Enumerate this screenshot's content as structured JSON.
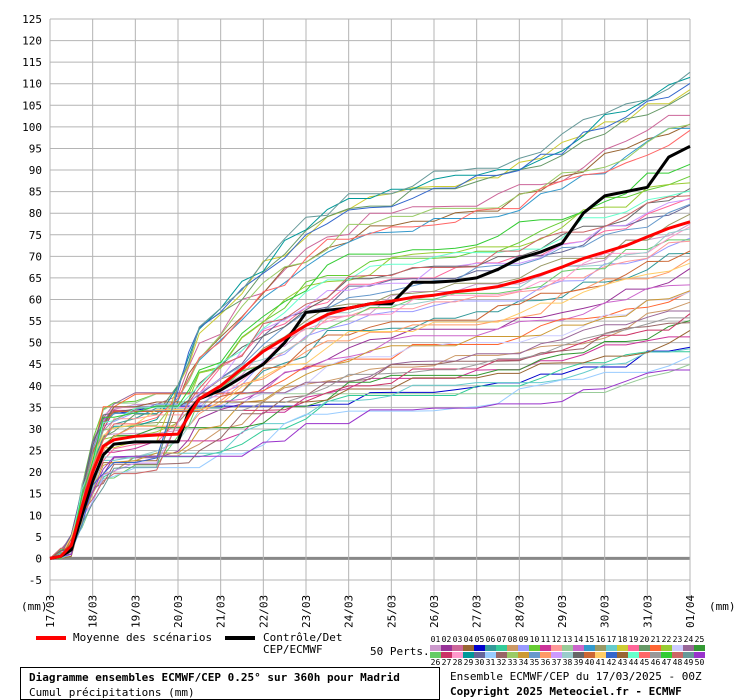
{
  "chart_data": {
    "type": "line",
    "unit_left": "(mm)",
    "unit_right": "(mm)",
    "y_ticks": [
      "-5",
      "0",
      "5",
      "10",
      "15",
      "20",
      "25",
      "30",
      "35",
      "40",
      "45",
      "50",
      "55",
      "60",
      "65",
      "70",
      "75",
      "80",
      "85",
      "90",
      "95",
      "100",
      "105",
      "110",
      "115",
      "120",
      "125"
    ],
    "ylim": [
      -5,
      125
    ],
    "x_ticks": [
      "17/03",
      "18/03",
      "19/03",
      "20/03",
      "21/03",
      "22/03",
      "23/03",
      "24/03",
      "25/03",
      "26/03",
      "27/03",
      "28/03",
      "29/03",
      "30/03",
      "31/03",
      "01/04"
    ],
    "grid": true,
    "series": [
      {
        "name": "Moyenne des scénarios",
        "color": "#ff0000",
        "x_days": [
          0,
          0.25,
          0.5,
          0.75,
          1,
          1.25,
          1.5,
          2,
          2.5,
          3,
          3.25,
          3.5,
          4,
          4.5,
          5,
          5.5,
          6,
          6.5,
          7,
          7.5,
          8,
          8.5,
          9,
          9.5,
          10,
          10.5,
          11,
          11.5,
          12,
          12.5,
          13,
          13.5,
          14,
          14.5,
          15
        ],
        "values": [
          0,
          0.5,
          3,
          12,
          20,
          26,
          27.5,
          28.3,
          28.6,
          28.8,
          33,
          37,
          40,
          44,
          48,
          51,
          54,
          56.5,
          58,
          59,
          59.6,
          60.5,
          61,
          61.8,
          62.3,
          63,
          64.3,
          65.8,
          67.5,
          69.5,
          71,
          72.5,
          74.5,
          76.5,
          78
        ]
      },
      {
        "name": "Contrôle/Det CEP/ECMWF",
        "color": "#000000",
        "x_days": [
          0,
          0.25,
          0.5,
          0.75,
          1,
          1.25,
          1.5,
          2,
          2.5,
          3,
          3.25,
          3.5,
          4,
          4.5,
          5,
          5.5,
          6,
          6.5,
          7,
          7.5,
          8,
          8.5,
          9,
          9.5,
          10,
          10.5,
          11,
          11.5,
          12,
          12.5,
          13,
          13.5,
          14,
          14.5,
          15
        ],
        "values": [
          0,
          0.5,
          2,
          10,
          18,
          24,
          26.5,
          27,
          27,
          27,
          34,
          37,
          39,
          42,
          45,
          50,
          57,
          57.5,
          58,
          59,
          59,
          64,
          64,
          64.3,
          65,
          67,
          69.5,
          71,
          73,
          80,
          84,
          85,
          86,
          93,
          95.5
        ]
      },
      {
        "name": "50 Perts.",
        "color": "#888888"
      }
    ]
  },
  "legend": {
    "mean_label": "Moyenne des scénarios",
    "control_label": "Contrôle/Det\nCEP/ECMWF",
    "perts_label": "50 Perts.",
    "member_numbers": [
      "01",
      "02",
      "03",
      "04",
      "05",
      "06",
      "07",
      "08",
      "09",
      "10",
      "11",
      "12",
      "13",
      "14",
      "15",
      "16",
      "17",
      "18",
      "19",
      "20",
      "21",
      "22",
      "23",
      "24",
      "25",
      "26",
      "27",
      "28",
      "29",
      "30",
      "31",
      "32",
      "33",
      "34",
      "35",
      "36",
      "37",
      "38",
      "39",
      "40",
      "41",
      "42",
      "43",
      "44",
      "45",
      "46",
      "47",
      "48",
      "49",
      "50"
    ],
    "member_colors": [
      "#cc99cc",
      "#993399",
      "#cc6699",
      "#996633",
      "#0000cc",
      "#339999",
      "#33cc99",
      "#cc9966",
      "#9999ff",
      "#66cc33",
      "#cc3399",
      "#ff9999",
      "#99cc99",
      "#cc66cc",
      "#3399cc",
      "#999966",
      "#66cccc",
      "#cccc33",
      "#ff6699",
      "#669966",
      "#ff6633",
      "#99cc33",
      "#ccccff",
      "#996699",
      "#339933",
      "#66cc66",
      "#cc3366",
      "#ff99cc",
      "#009999",
      "#666699",
      "#99ccff",
      "#996666",
      "#99cc66",
      "#cc9933",
      "#6699cc",
      "#ff9966",
      "#cc99ff",
      "#99cccc",
      "#666666",
      "#cc6633",
      "#ffcc66",
      "#3366cc",
      "#996633",
      "#66ffcc",
      "#ff6666",
      "#999999",
      "#33cc33",
      "#cc6666",
      "#669999",
      "#9933cc"
    ]
  },
  "title": {
    "line1": "Diagramme ensembles ECMWF/CEP 0.25° sur 360h pour Madrid",
    "line2": "Cumul précipitations (mm)"
  },
  "run_info": "Ensemble ECMWF/CEP du 17/03/2025 - 00Z",
  "copyright": "Copyright 2025 Meteociel.fr - ECMWF"
}
